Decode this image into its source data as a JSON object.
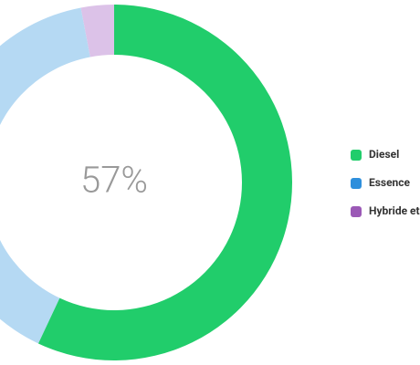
{
  "chart_data": {
    "type": "donut",
    "categories": [
      "Diesel",
      "Essence",
      "Hybride et"
    ],
    "values": [
      57,
      40,
      3
    ],
    "colors": [
      "#21cd6b",
      "#2e8fdc",
      "#9b59b6"
    ],
    "arc_colors": [
      "#21cd6b",
      "#b5d9f3",
      "#dcc2e8"
    ],
    "center_label": "57%"
  }
}
